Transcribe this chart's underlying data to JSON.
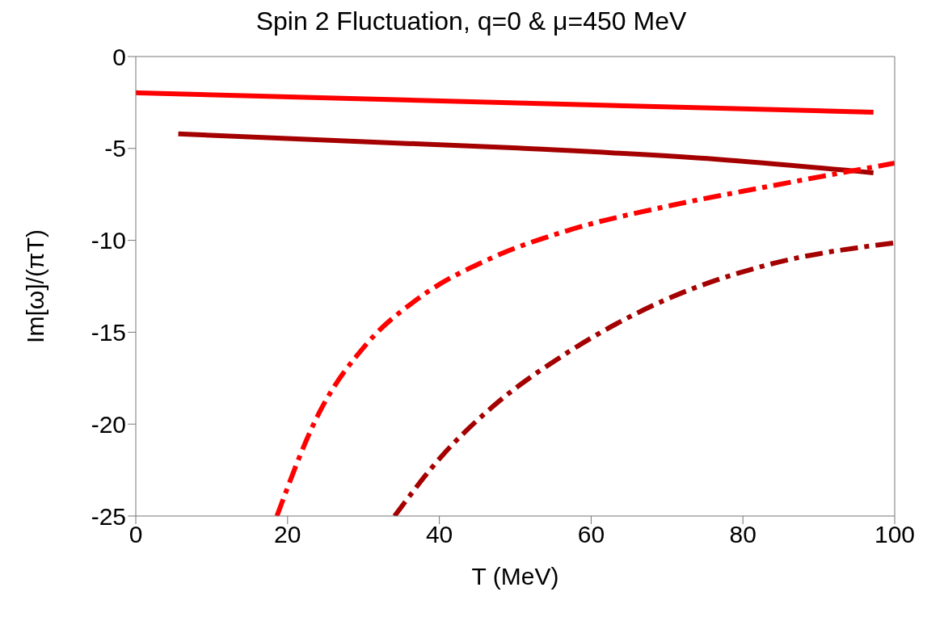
{
  "chart_data": {
    "type": "line",
    "title": "Spin 2 Fluctuation, q=0  & μ=450 MeV",
    "xlabel": "T (MeV)",
    "ylabel": "Im[ω]/(πT)",
    "xlim": [
      0,
      100
    ],
    "xticks": [
      0,
      20,
      40,
      60,
      80,
      100
    ],
    "ylim": [
      -25,
      0
    ],
    "yticks": [
      -25,
      -20,
      -15,
      -10,
      -5,
      0
    ],
    "grid": false,
    "legend": false,
    "marker": "none",
    "series": [
      {
        "color": "#ff0000",
        "line_style": "solid",
        "x": [
          0,
          50.3,
          97.2
        ],
        "values": [
          -1.97,
          -2.53,
          -3.03
        ]
      },
      {
        "color": "#a50000",
        "line_style": "solid",
        "x": [
          5.6,
          50.3,
          76.6,
          97.2
        ],
        "values": [
          -4.21,
          -4.98,
          -5.59,
          -6.33
        ]
      },
      {
        "color": "#ff0000",
        "line_style": "dashed",
        "x": [
          18.6,
          23.9,
          30.5,
          37.1,
          47.0,
          56.8,
          70.0,
          83.2,
          100
        ],
        "values": [
          -25,
          -19.6,
          -15.6,
          -13.2,
          -10.94,
          -9.48,
          -8.15,
          -7.08,
          -5.8
        ]
      },
      {
        "color": "#a50000",
        "line_style": "dashed",
        "x": [
          34.1,
          40.4,
          47.0,
          56.8,
          70.0,
          83.2,
          100
        ],
        "values": [
          -25,
          -21.7,
          -19.06,
          -16.13,
          -13.2,
          -11.34,
          -10.14
        ]
      }
    ]
  }
}
